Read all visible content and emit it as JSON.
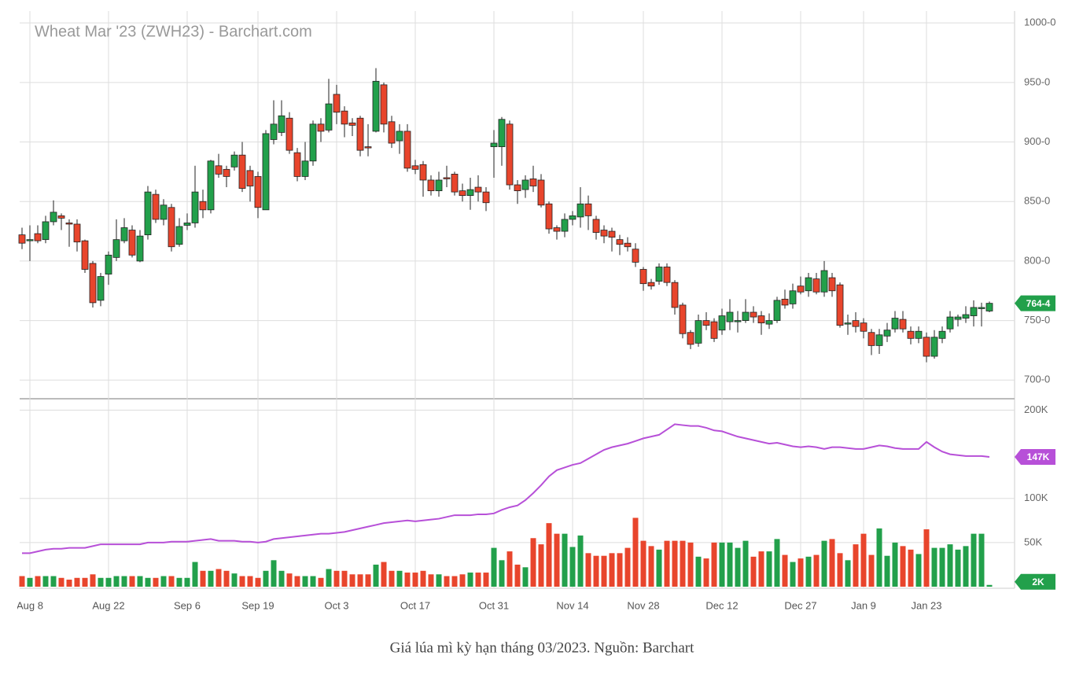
{
  "chart_data": [
    {
      "type": "candlestick",
      "title": "Wheat Mar '23 (ZWH23) - Barchart.com",
      "categories": [
        null,
        "Aug 8",
        null,
        null,
        null,
        null,
        null,
        null,
        null,
        null,
        null,
        "Aug 22",
        null,
        null,
        null,
        null,
        null,
        null,
        null,
        null,
        null,
        "Sep 6",
        null,
        null,
        null,
        null,
        null,
        null,
        null,
        null,
        "Sep 19",
        null,
        null,
        null,
        null,
        null,
        null,
        null,
        null,
        null,
        "Oct 3",
        null,
        null,
        null,
        null,
        null,
        null,
        null,
        null,
        null,
        "Oct 17",
        null,
        null,
        null,
        null,
        null,
        null,
        null,
        null,
        null,
        "Oct 31",
        null,
        null,
        null,
        null,
        null,
        null,
        null,
        null,
        null,
        "Nov 14",
        null,
        null,
        null,
        null,
        null,
        null,
        null,
        null,
        "Nov 28",
        null,
        null,
        null,
        null,
        null,
        null,
        null,
        null,
        null,
        "Dec 12",
        null,
        null,
        null,
        null,
        null,
        null,
        null,
        null,
        null,
        "Dec 27",
        null,
        null,
        null,
        null,
        null,
        null,
        null,
        "Jan 9",
        null,
        null,
        null,
        null,
        null,
        null,
        null,
        "Jan 23",
        null,
        null,
        null,
        null,
        null,
        null,
        null,
        null
      ],
      "open": [
        822,
        817,
        823,
        818,
        833,
        838,
        832,
        831,
        817,
        798,
        767,
        789,
        803,
        817,
        826,
        800,
        822,
        856,
        835,
        845,
        814,
        830,
        832,
        850,
        843,
        880,
        877,
        879,
        889,
        876,
        871,
        843,
        902,
        908,
        920,
        891,
        871,
        884,
        915,
        910,
        940,
        926,
        916,
        920,
        896,
        909,
        948,
        917,
        901,
        909,
        880,
        881,
        868,
        859,
        870,
        873,
        859,
        855,
        862,
        858,
        896,
        896,
        915,
        864,
        860,
        869,
        868,
        848,
        828,
        825,
        835,
        837,
        848,
        835,
        826,
        825,
        818,
        815,
        810,
        793,
        782,
        783,
        795,
        782,
        763,
        740,
        731,
        750,
        749,
        742,
        749,
        749,
        750,
        757,
        754,
        747,
        750,
        768,
        764,
        779,
        775,
        785,
        774,
        786,
        780,
        747,
        750,
        748,
        740,
        729,
        737,
        743,
        751,
        741,
        735,
        736,
        720,
        735,
        743,
        751,
        752,
        754,
        760,
        758
      ],
      "high": [
        828,
        830,
        830,
        838,
        851,
        840,
        835,
        835,
        818,
        800,
        790,
        808,
        835,
        836,
        830,
        826,
        863,
        860,
        852,
        848,
        836,
        840,
        880,
        860,
        885,
        890,
        880,
        892,
        900,
        880,
        875,
        910,
        935,
        935,
        925,
        895,
        900,
        918,
        920,
        953,
        948,
        930,
        920,
        922,
        915,
        962,
        950,
        922,
        915,
        915,
        885,
        884,
        872,
        875,
        880,
        875,
        865,
        870,
        872,
        862,
        910,
        921,
        918,
        868,
        872,
        880,
        873,
        850,
        830,
        840,
        842,
        862,
        855,
        838,
        830,
        828,
        822,
        820,
        815,
        795,
        785,
        798,
        798,
        784,
        765,
        742,
        755,
        757,
        752,
        760,
        768,
        758,
        768,
        762,
        758,
        756,
        770,
        776,
        781,
        787,
        790,
        790,
        800,
        790,
        782,
        755,
        757,
        752,
        743,
        743,
        748,
        758,
        758,
        745,
        745,
        740,
        742,
        745,
        758,
        755,
        762,
        767,
        765,
        766
      ],
      "low": [
        810,
        800,
        815,
        815,
        830,
        826,
        812,
        808,
        790,
        761,
        762,
        780,
        800,
        815,
        803,
        799,
        818,
        832,
        830,
        808,
        812,
        826,
        828,
        836,
        840,
        870,
        862,
        876,
        858,
        850,
        836,
        843,
        898,
        905,
        890,
        867,
        868,
        880,
        900,
        908,
        915,
        904,
        905,
        888,
        888,
        908,
        908,
        895,
        890,
        875,
        873,
        854,
        855,
        854,
        862,
        855,
        850,
        843,
        850,
        842,
        870,
        880,
        860,
        848,
        853,
        858,
        845,
        823,
        818,
        820,
        830,
        828,
        826,
        818,
        815,
        808,
        805,
        808,
        795,
        775,
        776,
        780,
        779,
        755,
        735,
        726,
        728,
        742,
        732,
        738,
        742,
        740,
        748,
        748,
        738,
        743,
        748,
        760,
        760,
        772,
        770,
        772,
        770,
        770,
        744,
        738,
        740,
        735,
        721,
        722,
        732,
        740,
        740,
        730,
        731,
        715,
        718,
        731,
        740,
        745,
        748,
        745,
        745,
        757
      ],
      "close": [
        815,
        818,
        817,
        833,
        841,
        836,
        831,
        816,
        793,
        765,
        787,
        805,
        818,
        828,
        805,
        821,
        858,
        835,
        847,
        812,
        829,
        832,
        858,
        843,
        884,
        873,
        871,
        889,
        861,
        863,
        845,
        907,
        915,
        922,
        893,
        871,
        884,
        915,
        909,
        932,
        925,
        915,
        914,
        893,
        895,
        951,
        915,
        899,
        909,
        878,
        877,
        868,
        859,
        868,
        869,
        858,
        855,
        860,
        858,
        849,
        899,
        919,
        864,
        859,
        868,
        863,
        847,
        827,
        825,
        835,
        838,
        848,
        838,
        824,
        821,
        820,
        814,
        812,
        799,
        781,
        779,
        795,
        782,
        761,
        739,
        730,
        750,
        746,
        735,
        754,
        757,
        750,
        757,
        753,
        748,
        750,
        767,
        763,
        775,
        774,
        786,
        774,
        792,
        775,
        746,
        748,
        745,
        741,
        729,
        738,
        742,
        752,
        743,
        735,
        741,
        720,
        736,
        741,
        753,
        753,
        755,
        761,
        761,
        764.5
      ],
      "last_close_label": "764-4",
      "up_color": "#22a04b",
      "down_color": "#e8452c",
      "ylim": [
        685,
        1010
      ],
      "yticks": [
        {
          "value": 700,
          "label": "700-0"
        },
        {
          "value": 750,
          "label": "750-0"
        },
        {
          "value": 800,
          "label": "800-0"
        },
        {
          "value": 850,
          "label": "850-0"
        },
        {
          "value": 900,
          "label": "900-0"
        },
        {
          "value": 950,
          "label": "950-0"
        },
        {
          "value": 1000,
          "label": "1000-0"
        }
      ],
      "grid": true
    },
    {
      "type": "bar",
      "volume": [
        12,
        10,
        12,
        12,
        12,
        10,
        8,
        10,
        10,
        14,
        10,
        10,
        12,
        12,
        12,
        12,
        10,
        10,
        12,
        12,
        10,
        10,
        28,
        18,
        18,
        20,
        18,
        15,
        12,
        12,
        10,
        18,
        30,
        18,
        15,
        12,
        12,
        12,
        10,
        20,
        18,
        18,
        14,
        14,
        14,
        25,
        28,
        18,
        18,
        16,
        16,
        18,
        14,
        14,
        12,
        12,
        14,
        16,
        16,
        16,
        44,
        30,
        40,
        25,
        22,
        55,
        48,
        72,
        60,
        60,
        45,
        58,
        38,
        35,
        35,
        38,
        38,
        44,
        78,
        52,
        46,
        42,
        52,
        52,
        52,
        50,
        34,
        32,
        50,
        50,
        50,
        44,
        52,
        34,
        40,
        40,
        54,
        36,
        28,
        32,
        34,
        36,
        52,
        54,
        38,
        30,
        48,
        60,
        36,
        66,
        35,
        50,
        46,
        42,
        37,
        65,
        44,
        44,
        48,
        42,
        46,
        60,
        60,
        2
      ],
      "last_volume_label": "2K",
      "open_interest": [
        38,
        38,
        40,
        42,
        43,
        43,
        44,
        44,
        44,
        46,
        48,
        48,
        48,
        48,
        48,
        48,
        50,
        50,
        50,
        51,
        51,
        51,
        52,
        53,
        54,
        52,
        52,
        52,
        51,
        51,
        50,
        51,
        54,
        55,
        56,
        57,
        58,
        59,
        60,
        60,
        61,
        62,
        64,
        66,
        68,
        70,
        72,
        73,
        74,
        75,
        74,
        75,
        76,
        77,
        79,
        81,
        81,
        81,
        82,
        82,
        83,
        87,
        90,
        92,
        98,
        106,
        115,
        125,
        132,
        135,
        138,
        140,
        145,
        150,
        155,
        158,
        160,
        162,
        165,
        168,
        170,
        172,
        178,
        184,
        183,
        182,
        182,
        180,
        177,
        176,
        173,
        170,
        168,
        166,
        164,
        162,
        163,
        161,
        159,
        158,
        159,
        158,
        156,
        158,
        158,
        157,
        156,
        156,
        158,
        160,
        159,
        157,
        156,
        156,
        156,
        164,
        158,
        153,
        150,
        149,
        148,
        148,
        148,
        147
      ],
      "last_open_interest_label": "147K",
      "line_color": "#b750d8",
      "ylim": [
        0,
        212
      ],
      "yticks": [
        {
          "value": 50,
          "label": "50K"
        },
        {
          "value": 100,
          "label": "100K"
        },
        {
          "value": 200,
          "label": "200K"
        }
      ],
      "grid": true
    }
  ],
  "caption": "Giá lúa mì kỳ hạn tháng 03/2023. Nguồn: Barchart"
}
